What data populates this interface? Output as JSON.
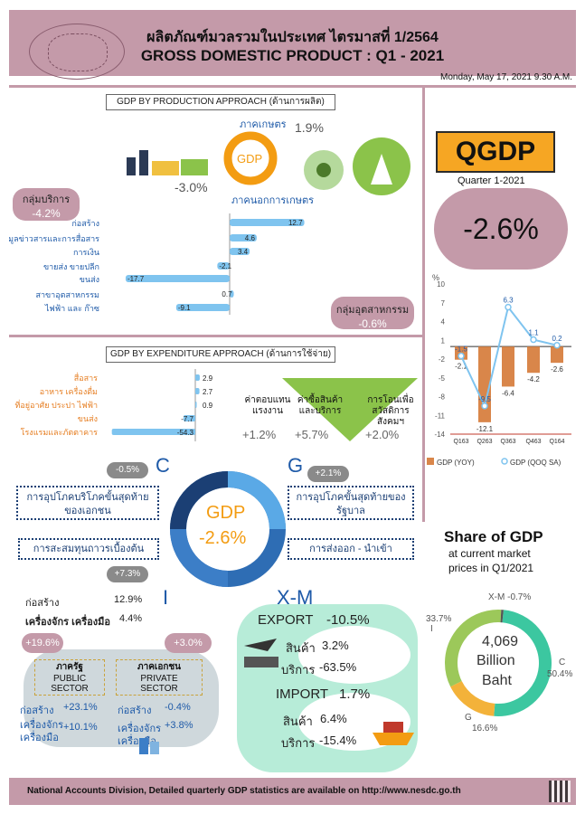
{
  "header": {
    "title_th": "ผลิตภัณฑ์มวลรวมในประเทศ ไตรมาสที่ 1/2564",
    "title_en": "GROSS DOMESTIC PRODUCT : Q1 - 2021",
    "date": "Monday, May 17, 2021 9.30 A.M."
  },
  "production": {
    "label": "GDP BY PRODUCTION APPROACH (ด้านการผลิต)",
    "agri_label": "ภาคเกษตร",
    "agri_value": "1.9%",
    "nonagri_label": "ภาคนอกการเกษตร",
    "nonagri_value": "-3.0%",
    "gdp": "GDP",
    "services_label": "กลุ่มบริการ",
    "services_value": "-4.2%",
    "industry_label": "กลุ่มอุตสาหกรรม",
    "industry_value": "-0.6%",
    "bars": [
      {
        "label": "ก่อสร้าง",
        "value": 12.7,
        "text": "12.7"
      },
      {
        "label": "ข้อมูลข่าวสารและการสื่อสาร",
        "value": 4.6,
        "text": "4.6"
      },
      {
        "label": "การเงิน",
        "value": 3.4,
        "text": "3.4"
      },
      {
        "label": "ขายส่ง ขายปลีก",
        "value": -2.1,
        "text": "-2.1"
      },
      {
        "label": "ขนส่ง",
        "value": -17.7,
        "text": "-17.7"
      },
      {
        "label": "สาขาอุตสาหกรรม",
        "value": 0.7,
        "text": "0.7"
      },
      {
        "label": "ไฟฟ้า และ ก๊าซ",
        "value": -9.1,
        "text": "-9.1"
      }
    ]
  },
  "expenditure": {
    "label": "GDP BY EXPENDITURE APPROACH (ด้านการใช้จ่าย)",
    "bars": [
      {
        "label": "สื่อสาร",
        "value": 2.9,
        "text": "2.9"
      },
      {
        "label": "อาหาร เครื่องดื่ม",
        "value": 2.7,
        "text": "2.7"
      },
      {
        "label": "ที่อยู่อาศัย ประปา ไฟฟ้า",
        "value": 0.9,
        "text": "0.9"
      },
      {
        "label": "ขนส่ง",
        "value": -7.7,
        "text": "-7.7"
      },
      {
        "label": "โรงแรมและภัตตาคาร",
        "value": -54.3,
        "text": "-54.3"
      }
    ],
    "gov_items": [
      {
        "label": "ค่าตอบแทนแรงงาน",
        "value": "+1.2%"
      },
      {
        "label": "ค่าซื้อสินค้าและบริการ",
        "value": "+5.7%"
      },
      {
        "label": "การโอนเพื่อสวัสดิการสังคมฯ",
        "value": "+2.0%"
      }
    ],
    "c_letter": "C",
    "c_value": "-0.5%",
    "c_label": "การอุปโภคบริโภคขั้นสุดท้ายของเอกชน",
    "g_letter": "G",
    "g_value": "+2.1%",
    "g_label": "การอุปโภคขั้นสุดท้ายของรัฐบาล",
    "i_letter": "I",
    "i_value": "+7.3%",
    "i_label": "การสะสมทุนถาวรเบื้องต้น",
    "xm_letter": "X-M",
    "xm_label": "การส่งออก - นำเข้า",
    "center_gdp": "GDP",
    "center_value": "-2.6%",
    "i_items": [
      {
        "label": "ก่อสร้าง",
        "value": "12.9%"
      },
      {
        "label": "เครื่องจักร เครื่องมือ",
        "value": "4.4%"
      }
    ],
    "public": {
      "badge": "+19.6%",
      "title_th": "ภาครัฐ",
      "title_en1": "PUBLIC",
      "title_en2": "SECTOR",
      "l1": "ก่อสร้าง",
      "v1": "+23.1%",
      "l2": "เครื่องจักร",
      "l3": "เครื่องมือ",
      "v2": "+10.1%"
    },
    "private": {
      "badge": "+3.0%",
      "title_th": "ภาคเอกชน",
      "title_en1": "PRIVATE",
      "title_en2": "SECTOR",
      "l1": "ก่อสร้าง",
      "v1": "-0.4%",
      "l2": "เครื่องจักร",
      "l3": "เครื่องมือ",
      "v2": "+3.8%"
    },
    "export": {
      "label": "EXPORT",
      "value": "-10.5%",
      "goods": "สินค้า",
      "goods_v": "3.2%",
      "serv": "บริการ",
      "serv_v": "-63.5%"
    },
    "import": {
      "label": "IMPORT",
      "value": "1.7%",
      "goods": "สินค้า",
      "goods_v": "6.4%",
      "serv": "บริการ",
      "serv_v": "-15.4%"
    }
  },
  "qgdp": {
    "title": "QGDP",
    "quarter": "Quarter 1-2021",
    "value": "-2.6%"
  },
  "chart_data": {
    "type": "bar",
    "categories": [
      "Q163",
      "Q263",
      "Q363",
      "Q463",
      "Q164"
    ],
    "series": [
      {
        "name": "GDP (YOY)",
        "type": "bar",
        "values": [
          -2.1,
          -12.1,
          -6.4,
          -4.2,
          -2.6
        ]
      },
      {
        "name": "GDP (QOQ SA)",
        "type": "line",
        "values": [
          -1.5,
          -9.5,
          6.3,
          1.1,
          0.2
        ]
      }
    ],
    "ylabel": "%",
    "ylim": [
      -14,
      10
    ],
    "yticks": [
      "10",
      "7",
      "4",
      "1",
      "-2",
      "-5",
      "-8",
      "-11",
      "-14"
    ]
  },
  "share": {
    "title": "Share of GDP",
    "sub1": "at current market",
    "sub2": "prices in Q1/2021",
    "center1": "4,069",
    "center2": "Billion",
    "center3": "Baht",
    "xm": "X-M -0.7%",
    "i_pct": "33.7%",
    "i_lbl": "I",
    "c_lbl": "C",
    "c_pct": "50.4%",
    "g_lbl": "G",
    "g_pct": "16.6%"
  },
  "footer": {
    "text": "National Accounts Division, Detailed quarterly GDP statistics are available on http://www.nesdc.go.th"
  }
}
